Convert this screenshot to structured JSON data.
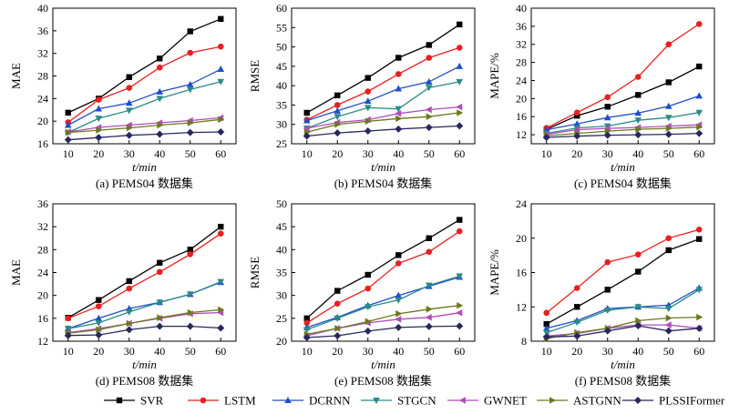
{
  "colors": {
    "SVR": "#000000",
    "LSTM": "#e8201f",
    "DCRNN": "#1f4fcc",
    "STGCN": "#2a8a8a",
    "GWNET": "#b04db8",
    "ASTGNN": "#6b7a1e",
    "PLSSIFormer": "#28285e"
  },
  "legend": [
    "SVR",
    "LSTM",
    "DCRNN",
    "STGCN",
    "GWNET",
    "ASTGNN",
    "PLSSIFormer"
  ],
  "chart_data": [
    {
      "type": "line",
      "caption": "(a) PEMS04 数据集",
      "xlabel": "t/min",
      "ylabel": "MAE",
      "x": [
        10,
        20,
        30,
        40,
        50,
        60
      ],
      "ylim": [
        16,
        40
      ],
      "yticks": [
        16,
        20,
        24,
        28,
        32,
        36,
        40
      ],
      "grid": false,
      "series": [
        {
          "name": "SVR",
          "values": [
            21.5,
            24.0,
            27.8,
            31.1,
            35.9,
            38.1
          ]
        },
        {
          "name": "LSTM",
          "values": [
            19.8,
            23.8,
            25.9,
            29.5,
            32.1,
            33.2
          ]
        },
        {
          "name": "DCRNN",
          "values": [
            19.3,
            22.2,
            23.2,
            25.2,
            26.5,
            29.2
          ]
        },
        {
          "name": "STGCN",
          "values": [
            18.0,
            20.5,
            21.9,
            24.0,
            25.6,
            27.0
          ]
        },
        {
          "name": "GWNET",
          "values": [
            18.1,
            18.9,
            19.3,
            19.7,
            20.1,
            20.6
          ]
        },
        {
          "name": "ASTGNN",
          "values": [
            18.0,
            18.4,
            18.8,
            19.3,
            19.7,
            20.3
          ]
        },
        {
          "name": "PLSSIFormer",
          "values": [
            16.7,
            17.1,
            17.5,
            17.7,
            18.0,
            18.1
          ]
        }
      ]
    },
    {
      "type": "line",
      "caption": "(b) PEMS04 数据集",
      "xlabel": "t/min",
      "ylabel": "RMSE",
      "x": [
        10,
        20,
        30,
        40,
        50,
        60
      ],
      "ylim": [
        25,
        60
      ],
      "yticks": [
        25,
        30,
        35,
        40,
        45,
        50,
        55,
        60
      ],
      "grid": false,
      "series": [
        {
          "name": "SVR",
          "values": [
            33.0,
            37.5,
            42.0,
            47.2,
            50.5,
            55.8
          ]
        },
        {
          "name": "LSTM",
          "values": [
            31.2,
            35.0,
            38.5,
            43.0,
            47.2,
            49.8
          ]
        },
        {
          "name": "DCRNN",
          "values": [
            31.0,
            33.5,
            36.0,
            39.2,
            41.0,
            45.0
          ]
        },
        {
          "name": "STGCN",
          "values": [
            29.0,
            32.0,
            34.3,
            34.0,
            39.5,
            41.0
          ]
        },
        {
          "name": "GWNET",
          "values": [
            29.0,
            30.5,
            31.2,
            32.8,
            33.8,
            34.5
          ]
        },
        {
          "name": "ASTGNN",
          "values": [
            28.0,
            30.0,
            30.8,
            31.5,
            32.0,
            33.0
          ]
        },
        {
          "name": "PLSSIFormer",
          "values": [
            27.0,
            27.8,
            28.3,
            28.8,
            29.2,
            29.6
          ]
        }
      ]
    },
    {
      "type": "line",
      "caption": "(c) PEMS04 数据集",
      "xlabel": "t/min",
      "ylabel": "MAPE/%",
      "x": [
        10,
        20,
        30,
        40,
        50,
        60
      ],
      "ylim": [
        10,
        40
      ],
      "yticks": [
        12,
        16,
        20,
        24,
        28,
        32,
        36,
        40
      ],
      "grid": false,
      "series": [
        {
          "name": "SVR",
          "values": [
            13.2,
            16.2,
            18.2,
            20.8,
            23.6,
            27.1
          ]
        },
        {
          "name": "LSTM",
          "values": [
            13.5,
            16.9,
            20.3,
            24.8,
            32.0,
            36.5
          ]
        },
        {
          "name": "DCRNN",
          "values": [
            13.1,
            14.4,
            15.8,
            16.8,
            18.3,
            20.6
          ]
        },
        {
          "name": "STGCN",
          "values": [
            12.3,
            13.5,
            13.9,
            15.2,
            15.8,
            16.9
          ]
        },
        {
          "name": "GWNET",
          "values": [
            12.1,
            13.1,
            13.4,
            13.6,
            13.9,
            14.2
          ]
        },
        {
          "name": "ASTGNN",
          "values": [
            11.8,
            12.3,
            12.8,
            13.2,
            13.4,
            13.7
          ]
        },
        {
          "name": "PLSSIFormer",
          "values": [
            11.4,
            11.7,
            11.9,
            12.0,
            12.1,
            12.3
          ]
        }
      ]
    },
    {
      "type": "line",
      "caption": "(d) PEMS08 数据集",
      "xlabel": "t/min",
      "ylabel": "MAE",
      "x": [
        10,
        20,
        30,
        40,
        50,
        60
      ],
      "ylim": [
        12,
        36
      ],
      "yticks": [
        12,
        16,
        20,
        24,
        28,
        32,
        36
      ],
      "grid": false,
      "series": [
        {
          "name": "SVR",
          "values": [
            16.1,
            19.2,
            22.5,
            25.7,
            28.0,
            32.0
          ]
        },
        {
          "name": "LSTM",
          "values": [
            16.0,
            18.1,
            21.2,
            24.1,
            27.2,
            30.8
          ]
        },
        {
          "name": "DCRNN",
          "values": [
            14.2,
            16.0,
            17.7,
            18.8,
            20.2,
            22.3
          ]
        },
        {
          "name": "STGCN",
          "values": [
            14.2,
            15.2,
            17.1,
            18.8,
            20.2,
            22.4
          ]
        },
        {
          "name": "GWNET",
          "values": [
            13.5,
            14.2,
            15.1,
            16.0,
            16.8,
            17.0
          ]
        },
        {
          "name": "ASTGNN",
          "values": [
            13.4,
            14.0,
            15.1,
            16.1,
            17.0,
            17.5
          ]
        },
        {
          "name": "PLSSIFormer",
          "values": [
            13.0,
            13.1,
            14.0,
            14.6,
            14.6,
            14.3
          ]
        }
      ]
    },
    {
      "type": "line",
      "caption": "(e) PEMS08 数据集",
      "xlabel": "t/min",
      "ylabel": "RMSE",
      "x": [
        10,
        20,
        30,
        40,
        50,
        60
      ],
      "ylim": [
        20,
        50
      ],
      "yticks": [
        20,
        25,
        30,
        35,
        40,
        45,
        50
      ],
      "grid": false,
      "series": [
        {
          "name": "SVR",
          "values": [
            25.0,
            31.0,
            34.5,
            38.8,
            42.5,
            46.5
          ]
        },
        {
          "name": "LSTM",
          "values": [
            24.0,
            28.2,
            31.5,
            37.0,
            39.5,
            44.0
          ]
        },
        {
          "name": "DCRNN",
          "values": [
            23.0,
            25.2,
            27.8,
            30.0,
            32.0,
            34.0
          ]
        },
        {
          "name": "STGCN",
          "values": [
            22.5,
            25.0,
            27.5,
            29.0,
            32.2,
            34.2
          ]
        },
        {
          "name": "GWNET",
          "values": [
            21.2,
            22.8,
            24.0,
            24.8,
            25.2,
            26.2
          ]
        },
        {
          "name": "ASTGNN",
          "values": [
            21.5,
            22.8,
            24.3,
            26.0,
            27.0,
            27.8
          ]
        },
        {
          "name": "PLSSIFormer",
          "values": [
            20.8,
            21.2,
            22.2,
            23.0,
            23.2,
            23.3
          ]
        }
      ]
    },
    {
      "type": "line",
      "caption": "(f) PEMS08 数据集",
      "xlabel": "t/min",
      "ylabel": "MAPE/%",
      "x": [
        10,
        20,
        30,
        40,
        50,
        60
      ],
      "ylim": [
        8,
        24
      ],
      "yticks": [
        8,
        12,
        16,
        20,
        24
      ],
      "grid": false,
      "series": [
        {
          "name": "SVR",
          "values": [
            10.0,
            12.0,
            14.0,
            16.1,
            18.6,
            19.9
          ]
        },
        {
          "name": "LSTM",
          "values": [
            11.3,
            14.2,
            17.2,
            18.1,
            20.0,
            21.0
          ]
        },
        {
          "name": "DCRNN",
          "values": [
            9.5,
            10.4,
            11.8,
            12.0,
            12.2,
            14.2
          ]
        },
        {
          "name": "STGCN",
          "values": [
            9.0,
            10.2,
            11.6,
            12.0,
            11.8,
            14.0
          ]
        },
        {
          "name": "GWNET",
          "values": [
            8.6,
            8.9,
            9.5,
            9.9,
            9.9,
            9.5
          ]
        },
        {
          "name": "ASTGNN",
          "values": [
            8.3,
            9.0,
            9.5,
            10.4,
            10.7,
            10.8
          ]
        },
        {
          "name": "PLSSIFormer",
          "values": [
            8.5,
            8.6,
            9.2,
            9.8,
            9.2,
            9.5
          ]
        }
      ]
    }
  ]
}
